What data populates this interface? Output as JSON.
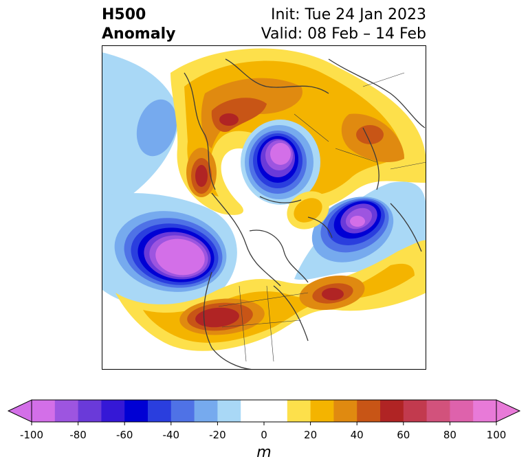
{
  "header": {
    "variable": "H500",
    "kind": "Anomaly",
    "init": "Init: Tue 24 Jan 2023",
    "valid": "Valid: 08 Feb – 14 Feb"
  },
  "colorbar": {
    "unit": "m",
    "ticks": [
      "-100",
      "-80",
      "-60",
      "-40",
      "-20",
      "0",
      "20",
      "40",
      "60",
      "80",
      "100"
    ],
    "colors": [
      "#d36fe8",
      "#9d55e0",
      "#6a3ad9",
      "#3518d6",
      "#0000d4",
      "#2a3ede",
      "#4f72e6",
      "#76aaee",
      "#a9d8f6",
      "#ffffff",
      "#ffffff",
      "#fde04b",
      "#f4b400",
      "#e08a10",
      "#c85516",
      "#b02424",
      "#c23a4e",
      "#d2527c",
      "#de62ac",
      "#e87ad8"
    ],
    "min_color": "#d36fe8",
    "max_color": "#e87ad8"
  }
}
